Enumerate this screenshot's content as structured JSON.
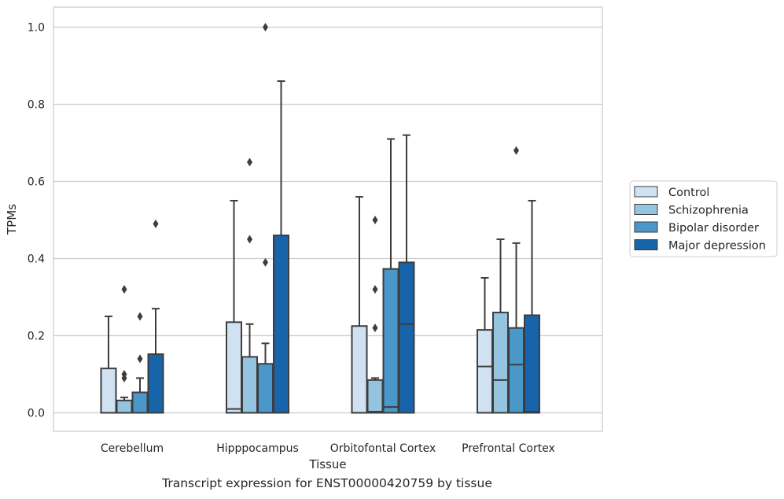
{
  "caption": "Transcript expression for ENST00000420759 by tissue",
  "chart_data": {
    "type": "box",
    "xlabel": "Tissue",
    "ylabel": "TPMs",
    "ylim": [
      -0.048,
      1.052
    ],
    "yticks": [
      0.0,
      0.2,
      0.4,
      0.6,
      0.8,
      1.0
    ],
    "ytick_labels": [
      "0.0",
      "0.2",
      "0.4",
      "0.6",
      "0.8",
      "1.0"
    ],
    "grid": "horizontal",
    "legend_position": "right",
    "categories": [
      "Cerebellum",
      "Hipppocampus",
      "Orbitofontal Cortex",
      "Prefrontal Cortex"
    ],
    "series": [
      {
        "name": "Control",
        "color": "#d0e1f2",
        "boxes": [
          {
            "min": 0.0,
            "q1": 0.0,
            "median": 0.0,
            "q3": 0.115,
            "max": 0.25,
            "outliers": []
          },
          {
            "min": 0.0,
            "q1": 0.0,
            "median": 0.01,
            "q3": 0.235,
            "max": 0.55,
            "outliers": []
          },
          {
            "min": 0.0,
            "q1": 0.0,
            "median": 0.0,
            "q3": 0.225,
            "max": 0.56,
            "outliers": []
          },
          {
            "min": 0.0,
            "q1": 0.0,
            "median": 0.12,
            "q3": 0.215,
            "max": 0.35,
            "outliers": []
          }
        ]
      },
      {
        "name": "Schizophrenia",
        "color": "#94c4df",
        "boxes": [
          {
            "min": 0.0,
            "q1": 0.0,
            "median": 0.0,
            "q3": 0.032,
            "max": 0.04,
            "outliers": [
              0.32,
              0.1,
              0.09
            ]
          },
          {
            "min": 0.0,
            "q1": 0.0,
            "median": 0.0,
            "q3": 0.145,
            "max": 0.23,
            "outliers": [
              0.65,
              0.45
            ]
          },
          {
            "min": 0.0,
            "q1": 0.0,
            "median": 0.003,
            "q3": 0.085,
            "max": 0.09,
            "outliers": [
              0.5,
              0.32,
              0.22
            ]
          },
          {
            "min": 0.0,
            "q1": 0.0,
            "median": 0.085,
            "q3": 0.26,
            "max": 0.45,
            "outliers": []
          }
        ]
      },
      {
        "name": "Bipolar disorder",
        "color": "#4a98c9",
        "boxes": [
          {
            "min": 0.0,
            "q1": 0.0,
            "median": 0.0,
            "q3": 0.053,
            "max": 0.09,
            "outliers": [
              0.25,
              0.14
            ]
          },
          {
            "min": 0.0,
            "q1": 0.0,
            "median": 0.0,
            "q3": 0.127,
            "max": 0.18,
            "outliers": [
              0.39,
              1.0
            ]
          },
          {
            "min": 0.0,
            "q1": 0.0,
            "median": 0.015,
            "q3": 0.373,
            "max": 0.71,
            "outliers": []
          },
          {
            "min": 0.0,
            "q1": 0.0,
            "median": 0.125,
            "q3": 0.22,
            "max": 0.44,
            "outliers": [
              0.68
            ]
          }
        ]
      },
      {
        "name": "Major depression",
        "color": "#1764ab",
        "boxes": [
          {
            "min": 0.0,
            "q1": 0.0,
            "median": 0.0,
            "q3": 0.152,
            "max": 0.27,
            "outliers": [
              0.49
            ]
          },
          {
            "min": 0.0,
            "q1": 0.0,
            "median": 0.0,
            "q3": 0.46,
            "max": 0.86,
            "outliers": []
          },
          {
            "min": 0.0,
            "q1": 0.0,
            "median": 0.23,
            "q3": 0.39,
            "max": 0.72,
            "outliers": []
          },
          {
            "min": 0.0,
            "q1": 0.0,
            "median": 0.003,
            "q3": 0.253,
            "max": 0.55,
            "outliers": []
          }
        ]
      }
    ]
  }
}
